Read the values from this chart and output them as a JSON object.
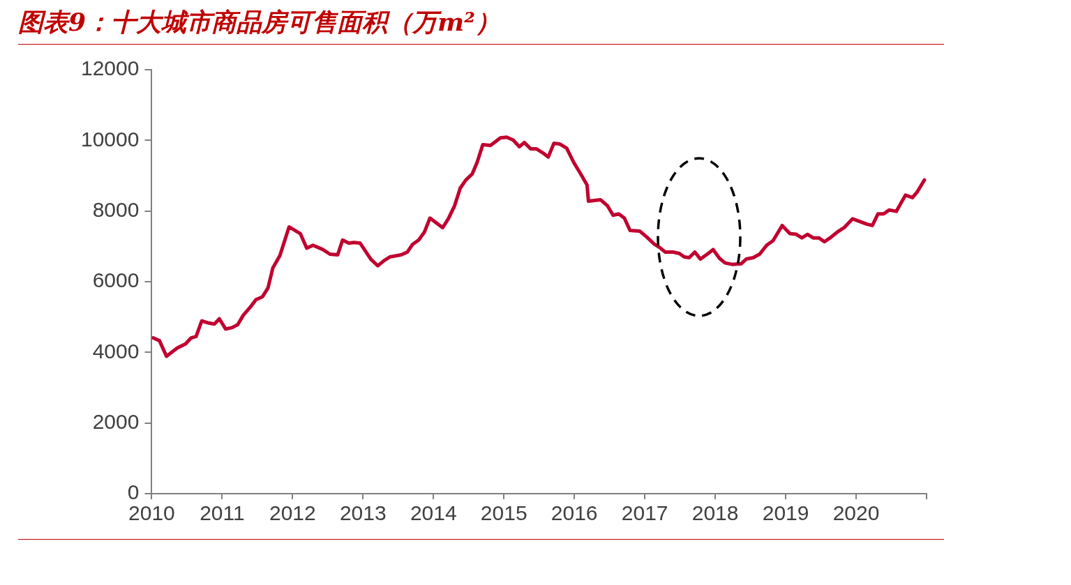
{
  "chart_data": {
    "type": "line",
    "title": "图表9：十大城市商品房可售面积（万m²）",
    "x": [
      2010.02,
      2010.11,
      2010.21,
      2010.36,
      2010.48,
      2010.56,
      2010.63,
      2010.71,
      2010.81,
      2010.89,
      2010.96,
      2011.05,
      2011.14,
      2011.22,
      2011.3,
      2011.4,
      2011.48,
      2011.57,
      2011.65,
      2011.72,
      2011.82,
      2011.95,
      2012.11,
      2012.2,
      2012.29,
      2012.43,
      2012.53,
      2012.64,
      2012.71,
      2012.8,
      2012.87,
      2012.96,
      2013.11,
      2013.21,
      2013.3,
      2013.38,
      2013.54,
      2013.63,
      2013.7,
      2013.79,
      2013.87,
      2013.95,
      2014.13,
      2014.21,
      2014.3,
      2014.38,
      2014.46,
      2014.55,
      2014.62,
      2014.7,
      2014.81,
      2014.95,
      2015.04,
      2015.13,
      2015.22,
      2015.29,
      2015.38,
      2015.46,
      2015.55,
      2015.63,
      2015.71,
      2015.79,
      2015.89,
      2015.99,
      2016.09,
      2016.18,
      2016.2,
      2016.37,
      2016.47,
      2016.55,
      2016.63,
      2016.71,
      2016.79,
      2016.93,
      2017.03,
      2017.13,
      2017.21,
      2017.29,
      2017.4,
      2017.49,
      2017.56,
      2017.63,
      2017.71,
      2017.79,
      2017.9,
      2017.97,
      2018.06,
      2018.14,
      2018.24,
      2018.37,
      2018.44,
      2018.54,
      2018.63,
      2018.73,
      2018.82,
      2018.95,
      2019.06,
      2019.15,
      2019.23,
      2019.31,
      2019.39,
      2019.47,
      2019.55,
      2019.63,
      2019.75,
      2019.83,
      2019.95,
      2020.15,
      2020.23,
      2020.31,
      2020.39,
      2020.47,
      2020.57,
      2020.7,
      2020.8,
      2020.87,
      2020.97
    ],
    "series": [
      {
        "color": "#c0002f",
        "values": [
          4410,
          4330,
          3890,
          4120,
          4240,
          4410,
          4450,
          4890,
          4830,
          4800,
          4950,
          4660,
          4700,
          4780,
          5050,
          5280,
          5490,
          5570,
          5820,
          6390,
          6740,
          7550,
          7360,
          6950,
          7030,
          6910,
          6780,
          6760,
          7180,
          7090,
          7110,
          7090,
          6640,
          6450,
          6600,
          6700,
          6760,
          6840,
          7050,
          7180,
          7400,
          7800,
          7530,
          7780,
          8150,
          8650,
          8880,
          9050,
          9380,
          9880,
          9860,
          10070,
          10090,
          10010,
          9820,
          9940,
          9760,
          9760,
          9650,
          9530,
          9920,
          9900,
          9780,
          9380,
          9050,
          8740,
          8280,
          8320,
          8150,
          7880,
          7920,
          7800,
          7450,
          7430,
          7260,
          7070,
          6970,
          6840,
          6840,
          6800,
          6700,
          6680,
          6840,
          6640,
          6800,
          6910,
          6660,
          6530,
          6490,
          6510,
          6640,
          6680,
          6780,
          7030,
          7160,
          7590,
          7360,
          7340,
          7240,
          7340,
          7240,
          7240,
          7130,
          7240,
          7430,
          7530,
          7780,
          7630,
          7590,
          7920,
          7920,
          8030,
          7990,
          8450,
          8380,
          8550,
          8880
        ]
      }
    ],
    "xlim": [
      2010,
      2021
    ],
    "xticks": [
      2010,
      2011,
      2012,
      2013,
      2014,
      2015,
      2016,
      2017,
      2018,
      2019,
      2020,
      {
        "value": 2021,
        "label": null
      }
    ],
    "ylim": [
      0,
      12000
    ],
    "yticks": [
      0,
      2000,
      4000,
      6000,
      8000,
      10000,
      12000
    ],
    "grid": false,
    "legend": false,
    "marker": "none",
    "line_style": "solid"
  }
}
